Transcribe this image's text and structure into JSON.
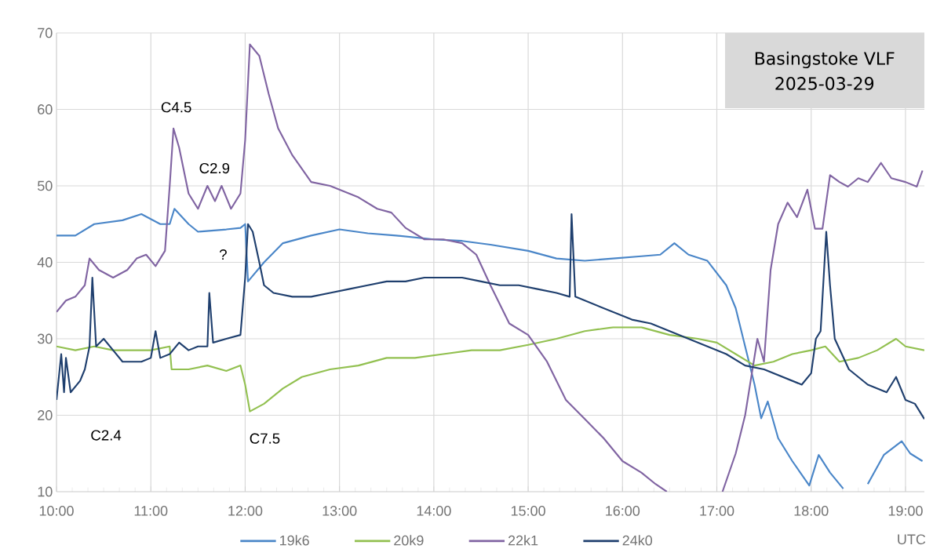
{
  "chart_data": {
    "type": "line",
    "title": "Basingstoke VLF",
    "subtitle": "2025-03-29",
    "xlabel": "UTC",
    "xlim": [
      10,
      19.2
    ],
    "ylim": [
      10,
      70
    ],
    "xticks": [
      {
        "value": 10,
        "label": "10:00"
      },
      {
        "value": 11,
        "label": "11:00"
      },
      {
        "value": 12,
        "label": "12:00"
      },
      {
        "value": 13,
        "label": "13:00"
      },
      {
        "value": 14,
        "label": "14:00"
      },
      {
        "value": 15,
        "label": "15:00"
      },
      {
        "value": 16,
        "label": "16:00"
      },
      {
        "value": 17,
        "label": "17:00"
      },
      {
        "value": 18,
        "label": "18:00"
      },
      {
        "value": 19,
        "label": "19:00"
      }
    ],
    "yticks": [
      10,
      20,
      30,
      40,
      50,
      60,
      70
    ],
    "grid": true,
    "legend": "bottom",
    "annotations": [
      "C4.5",
      "C2.9",
      "?",
      "C2.4",
      "C7.5"
    ],
    "series": [
      {
        "name": "19k6",
        "color": "#4a86c8",
        "x": [
          10.0,
          10.2,
          10.4,
          10.7,
          10.9,
          11.1,
          11.2,
          11.25,
          11.4,
          11.5,
          11.8,
          11.95,
          12.0,
          12.03,
          12.2,
          12.4,
          12.7,
          13.0,
          13.3,
          13.6,
          14.0,
          14.3,
          14.6,
          15.0,
          15.3,
          15.6,
          15.9,
          16.2,
          16.4,
          16.55,
          16.7,
          16.9,
          17.1,
          17.2,
          17.3,
          17.4,
          17.47,
          17.54,
          17.65,
          17.8,
          17.98,
          18.08,
          18.2,
          18.34,
          18.4,
          18.5,
          18.6,
          18.77,
          18.96,
          19.05,
          19.18
        ],
        "values": [
          43.5,
          43.5,
          45,
          45.5,
          46.3,
          45,
          45,
          47,
          45,
          44,
          44.3,
          44.5,
          45,
          37.5,
          40,
          42.5,
          43.5,
          44.3,
          43.8,
          43.5,
          43,
          42.8,
          42.3,
          41.5,
          40.5,
          40.2,
          40.5,
          40.8,
          41,
          42.5,
          41,
          40.2,
          37,
          34,
          29,
          24,
          19.6,
          21.8,
          17,
          14,
          10.8,
          14.8,
          12.5,
          10.4,
          null,
          null,
          11,
          14.8,
          16.6,
          15,
          14
        ]
      },
      {
        "name": "20k9",
        "color": "#92c050",
        "x": [
          10.0,
          10.2,
          10.4,
          10.6,
          10.8,
          11.0,
          11.2,
          11.22,
          11.4,
          11.6,
          11.8,
          11.95,
          12.0,
          12.05,
          12.2,
          12.4,
          12.6,
          12.9,
          13.2,
          13.5,
          13.8,
          14.1,
          14.4,
          14.7,
          15.0,
          15.3,
          15.6,
          15.9,
          16.2,
          16.5,
          16.8,
          17.0,
          17.2,
          17.4,
          17.6,
          17.8,
          18.0,
          18.15,
          18.3,
          18.5,
          18.7,
          18.9,
          19.0,
          19.2
        ],
        "values": [
          29,
          28.5,
          29,
          28.5,
          28.5,
          28.5,
          29,
          26,
          26,
          26.5,
          25.8,
          26.5,
          24,
          20.5,
          21.5,
          23.5,
          25,
          26,
          26.5,
          27.5,
          27.5,
          28,
          28.5,
          28.5,
          29.2,
          30,
          31,
          31.5,
          31.5,
          30.5,
          30,
          29.5,
          28,
          26.5,
          27,
          28,
          28.5,
          29,
          27,
          27.5,
          28.5,
          30,
          29,
          28.5
        ]
      },
      {
        "name": "22k1",
        "color": "#8064a2",
        "x": [
          10.0,
          10.1,
          10.2,
          10.3,
          10.35,
          10.45,
          10.6,
          10.75,
          10.85,
          10.95,
          11.05,
          11.15,
          11.2,
          11.24,
          11.3,
          11.4,
          11.5,
          11.6,
          11.68,
          11.75,
          11.85,
          11.95,
          12.0,
          12.05,
          12.15,
          12.25,
          12.35,
          12.5,
          12.7,
          12.9,
          13.2,
          13.4,
          13.55,
          13.7,
          13.9,
          14.1,
          14.3,
          14.45,
          14.6,
          14.8,
          15.0,
          15.2,
          15.4,
          15.6,
          15.8,
          16.0,
          16.2,
          16.35,
          16.47,
          16.7,
          16.9,
          17.06,
          17.2,
          17.3,
          17.43,
          17.5,
          17.57,
          17.65,
          17.75,
          17.85,
          17.96,
          18.04,
          18.12,
          18.2,
          18.3,
          18.39,
          18.5,
          18.6,
          18.74,
          18.85,
          19.0,
          19.12,
          19.18
        ],
        "values": [
          33.5,
          35,
          35.5,
          37,
          40.5,
          39,
          38,
          39,
          40.5,
          41,
          39.5,
          41.5,
          50,
          57.5,
          55,
          49,
          47,
          50,
          48,
          50,
          47,
          49,
          56,
          68.5,
          67,
          62,
          57.5,
          54,
          50.5,
          50,
          48.5,
          47,
          46.5,
          44.5,
          43,
          43,
          42.5,
          41,
          37,
          32,
          30.5,
          27,
          22,
          19.5,
          17,
          14,
          12.5,
          11,
          10,
          null,
          null,
          10,
          15,
          20,
          30,
          27,
          39,
          45,
          47.8,
          45.9,
          49.5,
          44.4,
          44.4,
          51.4,
          50.5,
          49.9,
          51,
          50.5,
          53,
          51,
          50.5,
          49.9,
          52
        ]
      },
      {
        "name": "24k0",
        "color": "#1f3f6e",
        "x": [
          10.0,
          10.05,
          10.08,
          10.1,
          10.15,
          10.25,
          10.3,
          10.35,
          10.38,
          10.42,
          10.5,
          10.6,
          10.7,
          10.9,
          11.0,
          11.05,
          11.1,
          11.2,
          11.3,
          11.4,
          11.5,
          11.6,
          11.62,
          11.66,
          11.8,
          11.95,
          12.0,
          12.03,
          12.08,
          12.15,
          12.2,
          12.3,
          12.5,
          12.7,
          12.9,
          13.1,
          13.3,
          13.5,
          13.7,
          13.9,
          14.1,
          14.3,
          14.5,
          14.7,
          14.9,
          15.1,
          15.3,
          15.44,
          15.46,
          15.5,
          15.7,
          15.9,
          16.1,
          16.3,
          16.5,
          16.7,
          16.9,
          17.1,
          17.3,
          17.5,
          17.7,
          17.9,
          18.0,
          18.05,
          18.1,
          18.16,
          18.2,
          18.25,
          18.4,
          18.6,
          18.8,
          18.9,
          19.0,
          19.1,
          19.2
        ],
        "values": [
          22,
          28,
          23,
          27.5,
          23,
          24.5,
          26,
          29,
          38,
          29,
          30,
          28.5,
          27,
          27,
          27.5,
          31,
          27.5,
          28,
          29.5,
          28.5,
          29,
          29,
          36,
          29.5,
          30,
          30.5,
          38,
          45,
          44,
          40,
          37,
          36,
          35.5,
          35.5,
          36,
          36.5,
          37,
          37.5,
          37.5,
          38,
          38,
          38,
          37.5,
          37,
          37,
          36.5,
          36,
          35.5,
          46.3,
          35.5,
          34.5,
          33.5,
          32.5,
          32,
          31,
          30,
          29,
          28,
          26.5,
          26,
          25,
          24,
          25.5,
          30,
          31,
          44,
          37,
          30,
          26,
          24,
          23,
          25,
          22,
          21.5,
          19.5
        ]
      }
    ]
  }
}
